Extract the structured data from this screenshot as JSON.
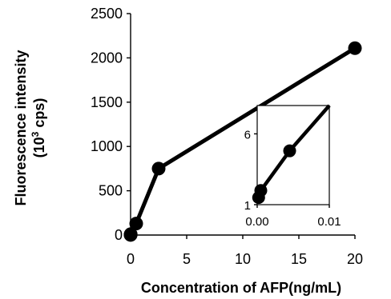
{
  "chart_data": [
    {
      "type": "line",
      "xlabel": "Concentration of AFP(ng/mL)",
      "ylabel_line1": "Fluorescence intensity",
      "ylabel_line2_base": "(10",
      "ylabel_line2_sup": "3",
      "ylabel_line2_tail": " cps)",
      "xlim": [
        0,
        20
      ],
      "ylim": [
        0,
        2500
      ],
      "xticks": [
        0,
        5,
        10,
        15,
        20
      ],
      "yticks": [
        0,
        500,
        1000,
        1500,
        2000,
        2500
      ],
      "xtick_labels": [
        "0",
        "5",
        "10",
        "15",
        "20"
      ],
      "ytick_labels": [
        "0",
        "500",
        "1000",
        "1500",
        "2000",
        "2500"
      ],
      "series": [
        {
          "x": [
            0,
            0.001,
            0.005,
            0.01,
            0.5,
            2.5,
            20
          ],
          "y": [
            1.5,
            2,
            5,
            10,
            130,
            750,
            2110
          ]
        }
      ]
    },
    {
      "type": "line",
      "inset": true,
      "xlim": [
        0,
        0.01
      ],
      "ylim": [
        1,
        8
      ],
      "xticks": [
        0,
        0.01
      ],
      "yticks": [
        1,
        6
      ],
      "xtick_labels": [
        "0.00",
        "0.01"
      ],
      "ytick_labels": [
        "1",
        "6"
      ],
      "series": [
        {
          "x": [
            0.0002,
            0.0005,
            0.0045,
            0.01
          ],
          "y": [
            1.5,
            2.0,
            4.8,
            8.0
          ]
        }
      ]
    }
  ]
}
